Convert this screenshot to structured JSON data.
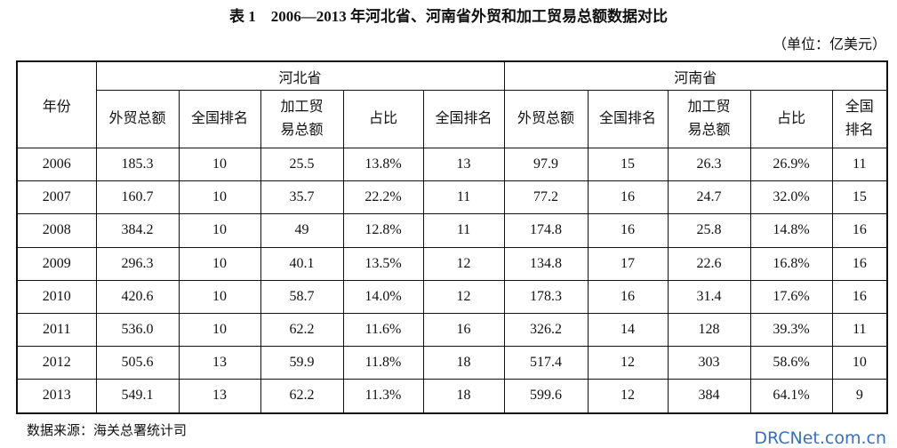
{
  "title": "表 1　2006—2013 年河北省、河南省外贸和加工贸易总额数据对比",
  "unit": "（单位：亿美元）",
  "table": {
    "year_header": "年份",
    "groups": [
      "河北省",
      "河南省"
    ],
    "columns": [
      "外贸总额",
      "全国排名",
      "加工贸易总额",
      "占比",
      "全国排名",
      "外贸总额",
      "全国排名",
      "加工贸易总额",
      "占比",
      "全国排名"
    ],
    "rows": [
      [
        "2006",
        "185.3",
        "10",
        "25.5",
        "13.8%",
        "13",
        "97.9",
        "15",
        "26.3",
        "26.9%",
        "11"
      ],
      [
        "2007",
        "160.7",
        "10",
        "35.7",
        "22.2%",
        "11",
        "77.2",
        "16",
        "24.7",
        "32.0%",
        "15"
      ],
      [
        "2008",
        "384.2",
        "10",
        "49",
        "12.8%",
        "11",
        "174.8",
        "16",
        "25.8",
        "14.8%",
        "16"
      ],
      [
        "2009",
        "296.3",
        "10",
        "40.1",
        "13.5%",
        "12",
        "134.8",
        "17",
        "22.6",
        "16.8%",
        "16"
      ],
      [
        "2010",
        "420.6",
        "10",
        "58.7",
        "14.0%",
        "12",
        "178.3",
        "16",
        "31.4",
        "17.6%",
        "16"
      ],
      [
        "2011",
        "536.0",
        "10",
        "62.2",
        "11.6%",
        "16",
        "326.2",
        "14",
        "128",
        "39.3%",
        "11"
      ],
      [
        "2012",
        "505.6",
        "13",
        "59.9",
        "11.8%",
        "18",
        "517.4",
        "12",
        "303",
        "58.6%",
        "10"
      ],
      [
        "2013",
        "549.1",
        "13",
        "62.2",
        "11.3%",
        "18",
        "599.6",
        "12",
        "384",
        "64.1%",
        "9"
      ]
    ]
  },
  "source": "数据来源：海关总署统计司",
  "watermark": "DRCNet.com.cn"
}
